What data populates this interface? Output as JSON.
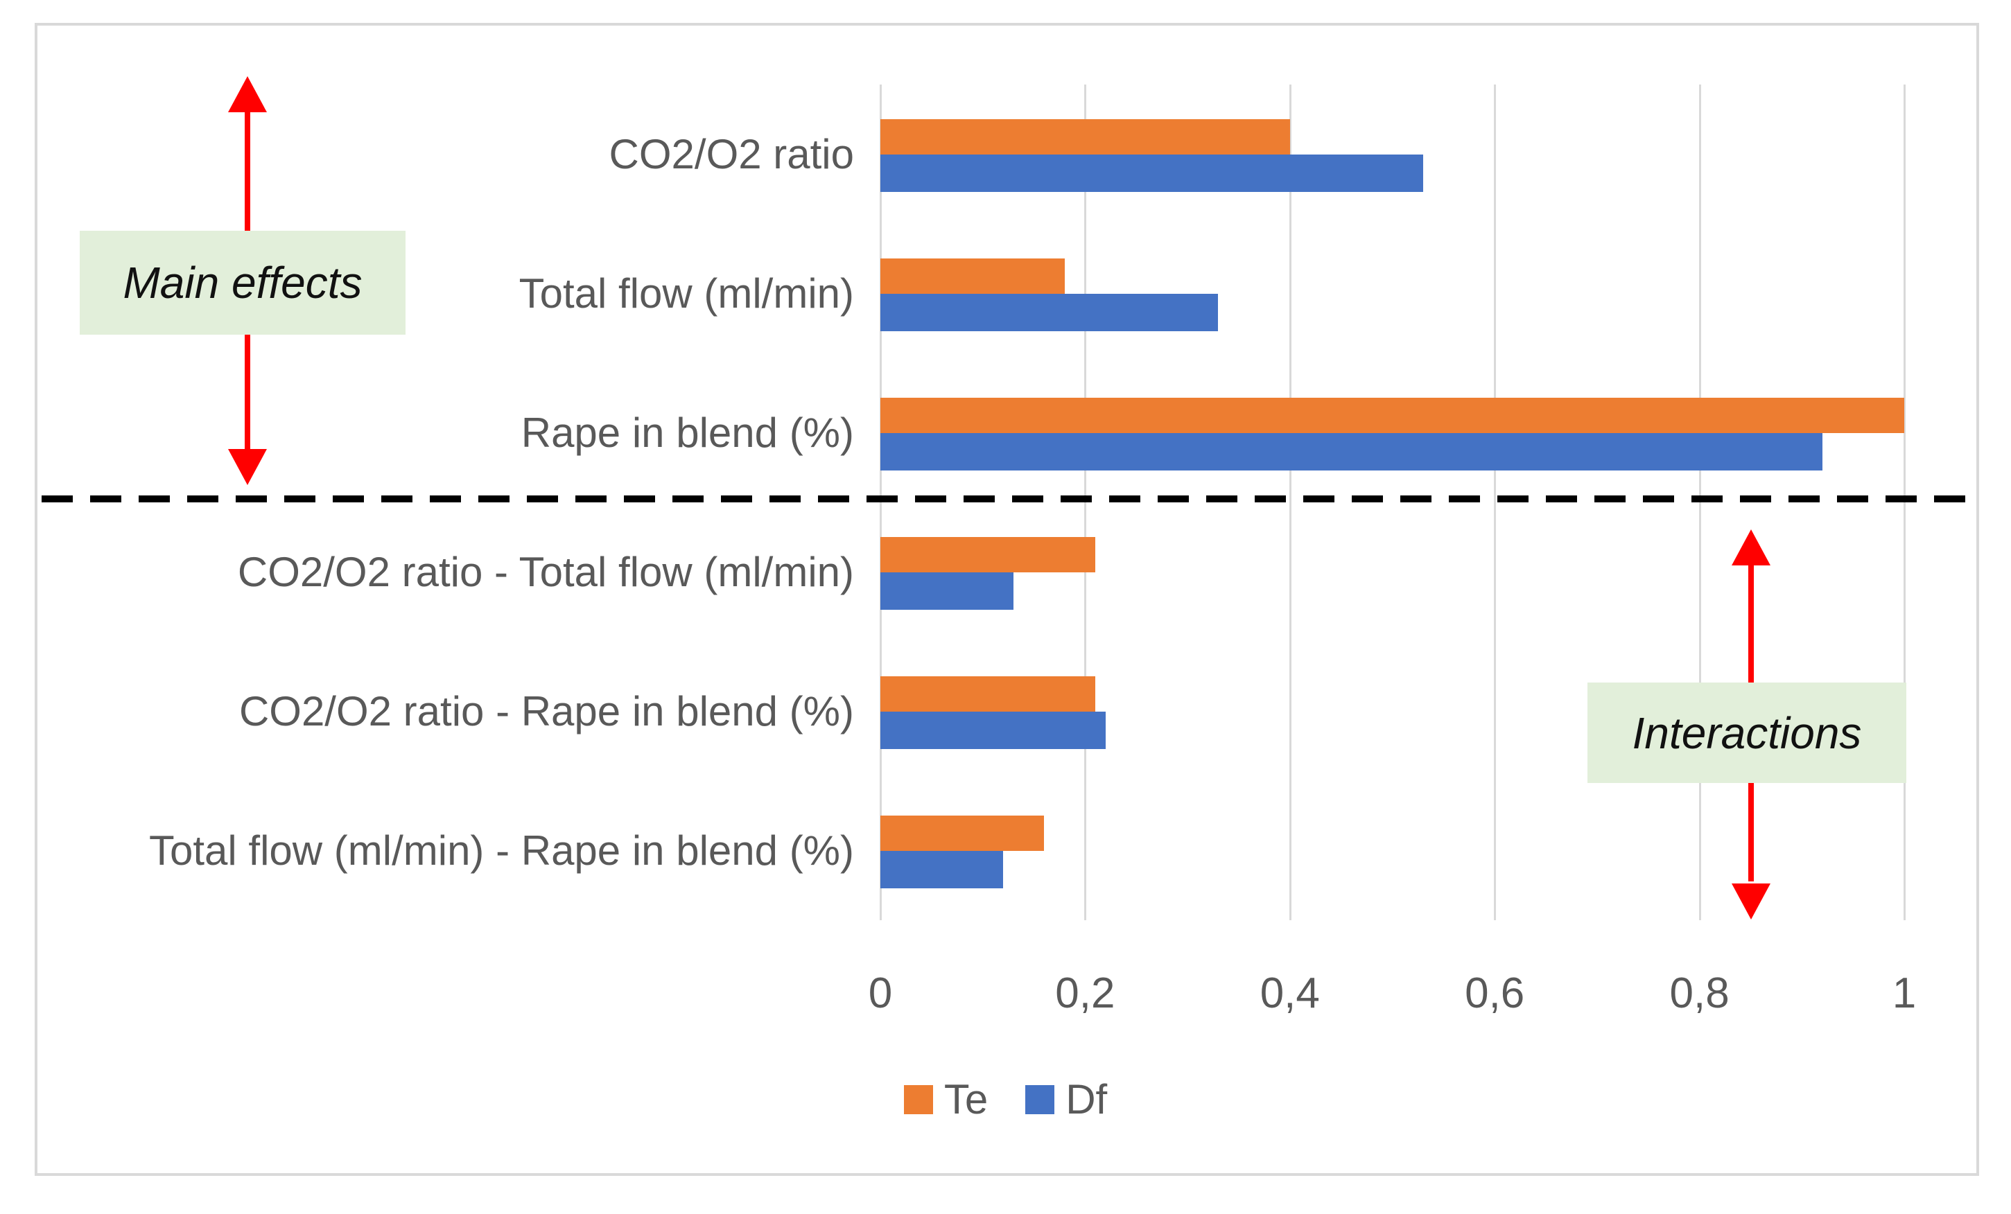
{
  "chart_data": {
    "type": "bar",
    "orientation": "horizontal",
    "title": "",
    "categories": [
      "CO2/O2 ratio",
      "Total flow (ml/min)",
      "Rape in blend (%)",
      "CO2/O2 ratio - Total flow (ml/min)",
      "CO2/O2 ratio - Rape in blend (%)",
      "Total flow (ml/min) - Rape in blend (%)"
    ],
    "series": [
      {
        "name": "Te",
        "color": "#ED7D31",
        "values": [
          0.4,
          0.18,
          1.0,
          0.21,
          0.21,
          0.16
        ]
      },
      {
        "name": "Df",
        "color": "#4472C4",
        "values": [
          0.53,
          0.33,
          0.92,
          0.13,
          0.22,
          0.12
        ]
      }
    ],
    "x_axis": {
      "min": 0,
      "max": 1,
      "ticks": [
        "0",
        "0,2",
        "0,4",
        "0,6",
        "0,8",
        "1"
      ],
      "gridlines": true
    },
    "legend": {
      "position": "bottom",
      "entries": [
        "Te",
        "Df"
      ]
    },
    "annotations": {
      "main_effects": {
        "label": "Main effects"
      },
      "interactions": {
        "label": "Interactions"
      },
      "separator": "horizontal dashed line between main effects and interactions"
    }
  },
  "colors": {
    "series_te": "#ED7D31",
    "series_df": "#4472C4",
    "gridline": "#D9D9D9",
    "frame_border": "#D9D9D9",
    "axis_text": "#595959",
    "annotation_box_bg": "#E2EFDA",
    "arrow_red": "#FF0000",
    "separator_black": "#000000"
  }
}
